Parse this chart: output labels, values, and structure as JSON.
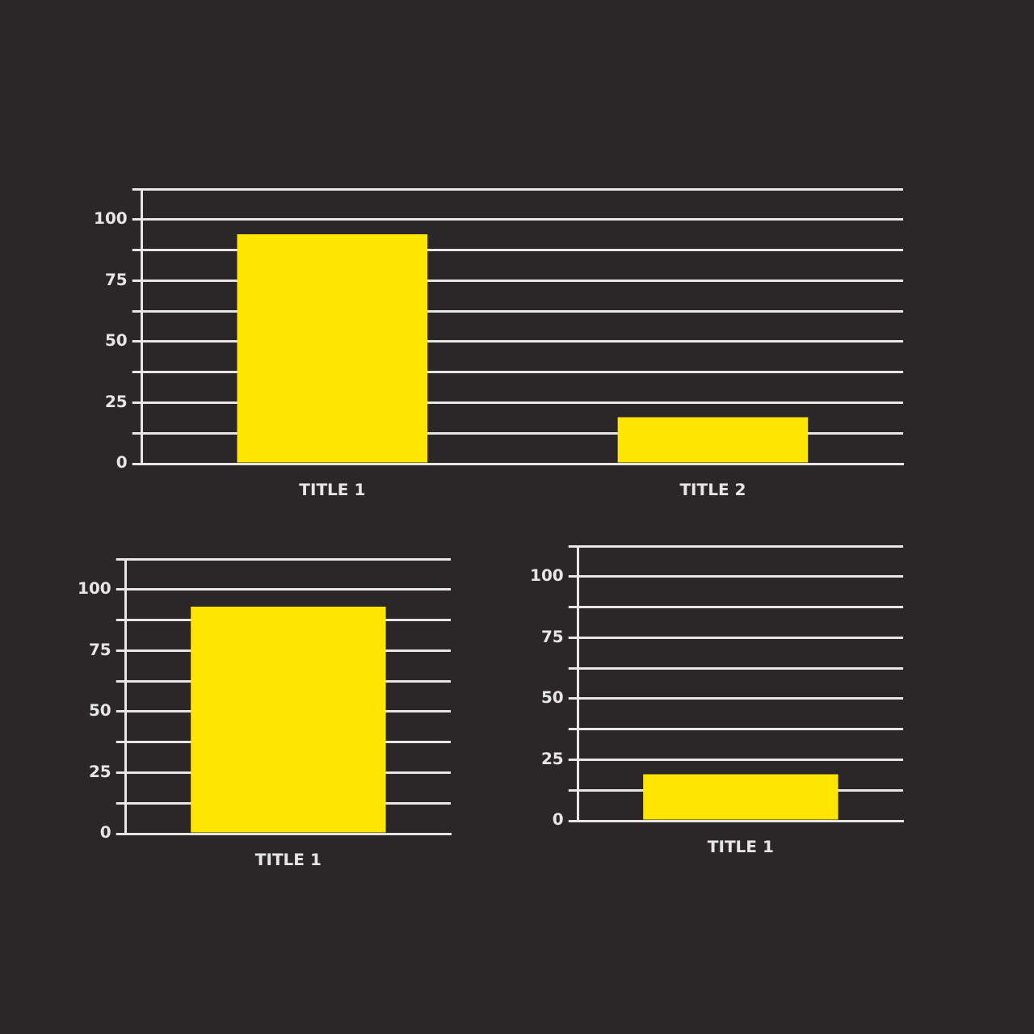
{
  "chart_data": [
    {
      "type": "bar",
      "categories": [
        "TITLE 1",
        "TITLE 2"
      ],
      "values": [
        94,
        19
      ],
      "color": "#ffe600",
      "ylim": [
        0,
        112.5
      ],
      "yticks": [
        0,
        {
          "value": 12.5,
          "label": null
        },
        25,
        {
          "value": 37.5,
          "label": null
        },
        50,
        {
          "value": 62.5,
          "label": null
        },
        75,
        {
          "value": 87.5,
          "label": null
        },
        100,
        {
          "value": 112.5,
          "label": null
        }
      ],
      "grid": "y"
    },
    {
      "type": "bar",
      "categories": [
        "TITLE 1"
      ],
      "values": [
        93
      ],
      "color": "#ffe600",
      "ylim": [
        0,
        112.5
      ],
      "yticks": [
        0,
        {
          "value": 12.5,
          "label": null
        },
        25,
        {
          "value": 37.5,
          "label": null
        },
        50,
        {
          "value": 62.5,
          "label": null
        },
        75,
        {
          "value": 87.5,
          "label": null
        },
        100,
        {
          "value": 112.5,
          "label": null
        }
      ],
      "grid": "y"
    },
    {
      "type": "bar",
      "categories": [
        "TITLE 1"
      ],
      "values": [
        19
      ],
      "color": "#ffe600",
      "ylim": [
        0,
        112.5
      ],
      "yticks": [
        0,
        {
          "value": 12.5,
          "label": null
        },
        25,
        {
          "value": 37.5,
          "label": null
        },
        50,
        {
          "value": 62.5,
          "label": null
        },
        75,
        {
          "value": 87.5,
          "label": null
        },
        100,
        {
          "value": 112.5,
          "label": null
        }
      ],
      "grid": "y"
    }
  ]
}
